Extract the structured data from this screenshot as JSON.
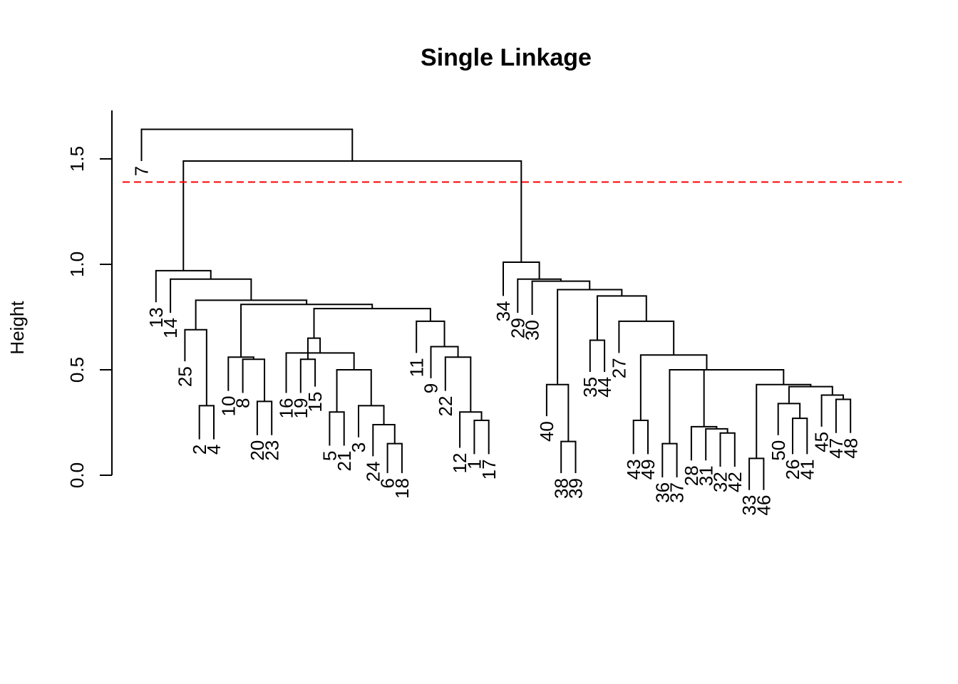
{
  "chart_data": {
    "type": "dendrogram",
    "title": "Single Linkage",
    "xlabel": "",
    "ylabel": "Height",
    "ylim": [
      0,
      1.7
    ],
    "yticks": [
      0.0,
      0.5,
      1.0,
      1.5
    ],
    "ytick_labels": [
      "0.0",
      "0.5",
      "1.0",
      "1.5"
    ],
    "cut_line": {
      "height": 1.39,
      "color": "#ff0000",
      "style": "dashed"
    },
    "leaf_order": [
      "7",
      "13",
      "14",
      "25",
      "2",
      "4",
      "10",
      "8",
      "20",
      "23",
      "16",
      "19",
      "15",
      "5",
      "21",
      "3",
      "24",
      "6",
      "18",
      "11",
      "9",
      "22",
      "12",
      "1",
      "17",
      "34",
      "29",
      "30",
      "40",
      "38",
      "39",
      "35",
      "44",
      "27",
      "43",
      "49",
      "36",
      "37",
      "28",
      "31",
      "32",
      "42",
      "33",
      "46",
      "50",
      "26",
      "41",
      "45",
      "47",
      "48"
    ],
    "leaf_heights": [
      1.49,
      0.82,
      0.77,
      0.54,
      0.17,
      0.17,
      0.4,
      0.39,
      0.19,
      0.19,
      0.39,
      0.39,
      0.42,
      0.14,
      0.14,
      0.18,
      0.09,
      0.01,
      0.01,
      0.58,
      0.46,
      0.4,
      0.13,
      0.1,
      0.1,
      0.85,
      0.77,
      0.76,
      0.28,
      0.01,
      0.01,
      0.49,
      0.49,
      0.58,
      0.1,
      0.1,
      -0.01,
      -0.01,
      0.07,
      0.07,
      0.04,
      0.04,
      -0.07,
      -0.07,
      0.19,
      0.1,
      0.1,
      0.23,
      0.2,
      0.2
    ],
    "merges": [
      {
        "left": "L5",
        "right": "L6",
        "height": 0.33
      },
      {
        "left": "L9",
        "right": "L10",
        "height": 0.35
      },
      {
        "left": "L8",
        "right": "M2",
        "height": 0.55
      },
      {
        "left": "L7",
        "right": "M3",
        "height": 0.56
      },
      {
        "left": "L4",
        "right": "M1",
        "height": 0.69
      },
      {
        "left": "L12",
        "right": "L13",
        "height": 0.55
      },
      {
        "left": "L18",
        "right": "L19",
        "height": 0.15
      },
      {
        "left": "L17",
        "right": "M7",
        "height": 0.24
      },
      {
        "left": "L16",
        "right": "M8",
        "height": 0.33
      },
      {
        "left": "L14",
        "right": "L15",
        "height": 0.3
      },
      {
        "left": "M10",
        "right": "M9",
        "height": 0.5
      },
      {
        "left": "L11",
        "right": "M11",
        "height": 0.58
      },
      {
        "left": "M6",
        "right": "M12",
        "height": 0.65
      },
      {
        "left": "L24",
        "right": "L25",
        "height": 0.26
      },
      {
        "left": "L23",
        "right": "M14",
        "height": 0.3
      },
      {
        "left": "L22",
        "right": "M15",
        "height": 0.56
      },
      {
        "left": "L21",
        "right": "M16",
        "height": 0.61
      },
      {
        "left": "L20",
        "right": "M17",
        "height": 0.73
      },
      {
        "left": "M13",
        "right": "M18",
        "height": 0.79
      },
      {
        "left": "M4",
        "right": "M19",
        "height": 0.81
      },
      {
        "left": "M5",
        "right": "M20",
        "height": 0.83
      },
      {
        "left": "L3",
        "right": "M21",
        "height": 0.93
      },
      {
        "left": "L2",
        "right": "M22",
        "height": 0.97
      },
      {
        "left": "L30",
        "right": "L31",
        "height": 0.16
      },
      {
        "left": "L29",
        "right": "M24",
        "height": 0.43
      },
      {
        "left": "L32",
        "right": "L33",
        "height": 0.64
      },
      {
        "left": "L35",
        "right": "L36",
        "height": 0.26
      },
      {
        "left": "L37",
        "right": "L38",
        "height": 0.15
      },
      {
        "left": "L41",
        "right": "L42",
        "height": 0.2
      },
      {
        "left": "L40",
        "right": "M29",
        "height": 0.22
      },
      {
        "left": "L39",
        "right": "M30",
        "height": 0.23
      },
      {
        "left": "L43",
        "right": "L44",
        "height": 0.08
      },
      {
        "left": "L46",
        "right": "L47",
        "height": 0.27
      },
      {
        "left": "L45",
        "right": "M33",
        "height": 0.34
      },
      {
        "left": "L49",
        "right": "L50",
        "height": 0.36
      },
      {
        "left": "L48",
        "right": "M35",
        "height": 0.38
      },
      {
        "left": "M34",
        "right": "M36",
        "height": 0.42
      },
      {
        "left": "M32",
        "right": "M37",
        "height": 0.43
      },
      {
        "left": "M31",
        "right": "M38",
        "height": 0.5
      },
      {
        "left": "M28",
        "right": "M39",
        "height": 0.5
      },
      {
        "left": "M27",
        "right": "M40",
        "height": 0.57
      },
      {
        "left": "L34",
        "right": "M41",
        "height": 0.73
      },
      {
        "left": "M26",
        "right": "M42",
        "height": 0.85
      },
      {
        "left": "M25",
        "right": "M43",
        "height": 0.88
      },
      {
        "left": "L28",
        "right": "M44",
        "height": 0.92
      },
      {
        "left": "L27",
        "right": "M45",
        "height": 0.93
      },
      {
        "left": "L26",
        "right": "M46",
        "height": 1.01
      },
      {
        "left": "M23",
        "right": "M47",
        "height": 1.49
      },
      {
        "left": "L1",
        "right": "M48",
        "height": 1.64
      }
    ]
  }
}
